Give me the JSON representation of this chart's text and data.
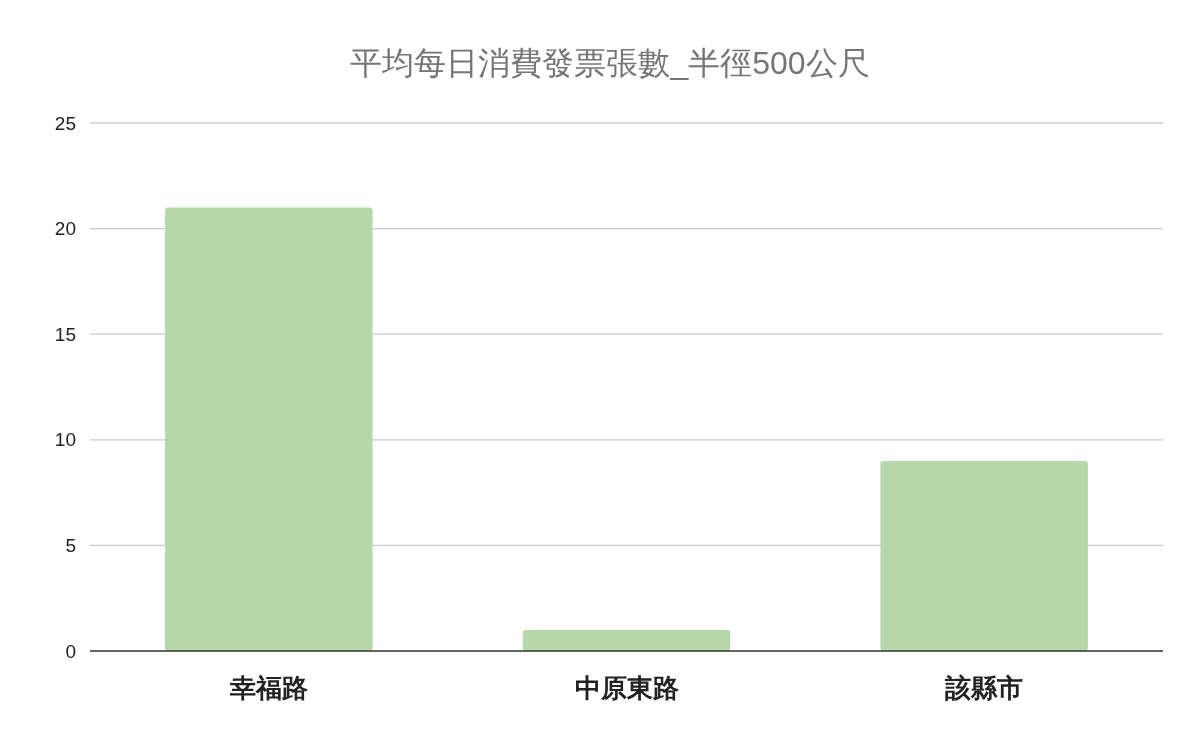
{
  "chart_data": {
    "type": "bar",
    "title": "平均每日消費發票張數_半徑500公尺",
    "categories": [
      "幸福路",
      "中原東路",
      "該縣市"
    ],
    "values": [
      21,
      1,
      9
    ],
    "color": "#b6d7a8",
    "ylim": [
      0,
      25
    ],
    "yticks": [
      0,
      5,
      10,
      15,
      20,
      25
    ],
    "grid": "y"
  }
}
